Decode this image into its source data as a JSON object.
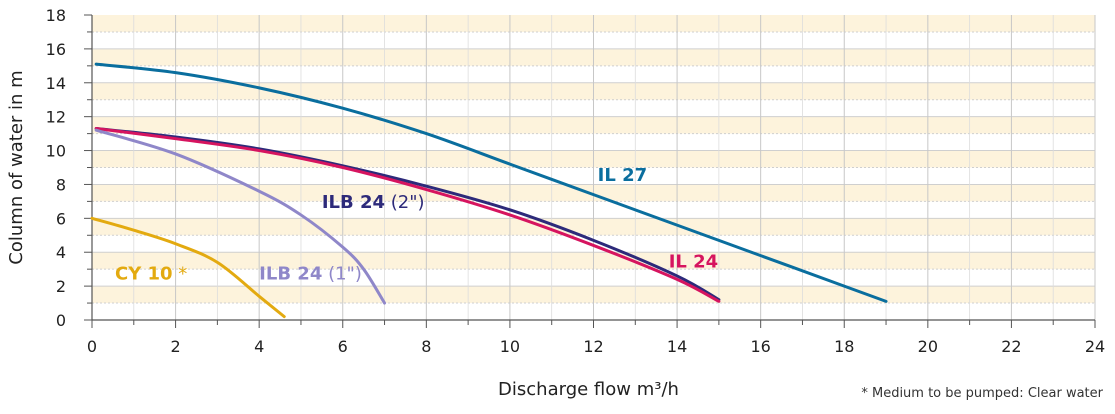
{
  "chart_data": {
    "type": "line",
    "xlabel": "Discharge flow m³/h",
    "ylabel": "Column of water in m",
    "xlim": [
      0,
      24
    ],
    "ylim": [
      0,
      18
    ],
    "x_ticks": [
      "0",
      "2",
      "4",
      "6",
      "8",
      "10",
      "12",
      "14",
      "16",
      "18",
      "20",
      "22",
      "24"
    ],
    "y_ticks": [
      "0",
      "2",
      "4",
      "6",
      "8",
      "10",
      "12",
      "14",
      "16",
      "18"
    ],
    "grid": true,
    "footnote": "* Medium to be pumped: Clear water",
    "colors": {
      "band_light": "#fdf3dc",
      "band_white": "#ffffff",
      "grid": "#cfcfcf",
      "axis": "#555555"
    },
    "series": [
      {
        "name_bold": "IL 27",
        "name_rest": "",
        "color": "#0a6e9e",
        "label_at": [
          12.1,
          8.2
        ],
        "points": [
          [
            0.1,
            15.1
          ],
          [
            2,
            14.6
          ],
          [
            4,
            13.7
          ],
          [
            6,
            12.5
          ],
          [
            8,
            11.0
          ],
          [
            10,
            9.2
          ],
          [
            12,
            7.4
          ],
          [
            14,
            5.6
          ],
          [
            16,
            3.8
          ],
          [
            18,
            2.0
          ],
          [
            19,
            1.1
          ]
        ]
      },
      {
        "name_bold": "ILB 24",
        "name_rest": " (2\")",
        "color": "#2d2a7a",
        "label_at": [
          5.5,
          6.6
        ],
        "points": [
          [
            0.1,
            11.3
          ],
          [
            2,
            10.8
          ],
          [
            4,
            10.1
          ],
          [
            6,
            9.1
          ],
          [
            8,
            7.9
          ],
          [
            10,
            6.5
          ],
          [
            12,
            4.7
          ],
          [
            14,
            2.6
          ],
          [
            15,
            1.2
          ]
        ]
      },
      {
        "name_bold": "IL 24",
        "name_rest": "",
        "color": "#d6145f",
        "label_at": [
          13.8,
          3.1
        ],
        "points": [
          [
            0.1,
            11.3
          ],
          [
            2,
            10.7
          ],
          [
            4,
            10.0
          ],
          [
            6,
            9.0
          ],
          [
            8,
            7.7
          ],
          [
            10,
            6.2
          ],
          [
            12,
            4.4
          ],
          [
            14,
            2.4
          ],
          [
            15,
            1.1
          ]
        ]
      },
      {
        "name_bold": "ILB 24",
        "name_rest": " (1\")",
        "color": "#8f87c9",
        "label_at": [
          4.0,
          2.4
        ],
        "points": [
          [
            0.1,
            11.2
          ],
          [
            2,
            9.8
          ],
          [
            4,
            7.6
          ],
          [
            5,
            6.2
          ],
          [
            6,
            4.3
          ],
          [
            6.5,
            3.0
          ],
          [
            7,
            1.0
          ]
        ]
      },
      {
        "name_bold": "CY 10",
        "name_rest": " *",
        "color": "#e3aa10",
        "label_at": [
          0.55,
          2.4
        ],
        "points": [
          [
            0,
            6.0
          ],
          [
            1,
            5.3
          ],
          [
            2,
            4.5
          ],
          [
            3,
            3.4
          ],
          [
            4,
            1.4
          ],
          [
            4.6,
            0.2
          ]
        ]
      }
    ]
  }
}
